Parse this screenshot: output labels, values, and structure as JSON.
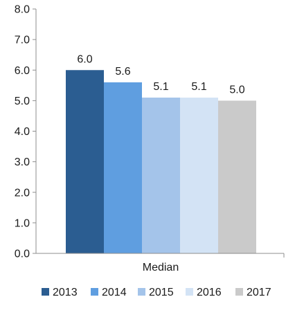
{
  "chart_data": {
    "type": "bar",
    "categories": [
      "Median"
    ],
    "series": [
      {
        "name": "2013",
        "values": [
          6.0
        ],
        "color": "#2b5d91"
      },
      {
        "name": "2014",
        "values": [
          5.6
        ],
        "color": "#5f9ee0"
      },
      {
        "name": "2015",
        "values": [
          5.1
        ],
        "color": "#a4c4ea"
      },
      {
        "name": "2016",
        "values": [
          5.1
        ],
        "color": "#d3e3f5"
      },
      {
        "name": "2017",
        "values": [
          5.0
        ],
        "color": "#cacaca"
      }
    ],
    "data_labels": [
      "6.0",
      "5.6",
      "5.1",
      "5.1",
      "5.0"
    ],
    "y_ticks": [
      "0.0",
      "1.0",
      "2.0",
      "3.0",
      "4.0",
      "5.0",
      "6.0",
      "7.0",
      "8.0"
    ],
    "ylim": [
      0,
      8
    ],
    "grid": false,
    "legend_position": "bottom"
  }
}
